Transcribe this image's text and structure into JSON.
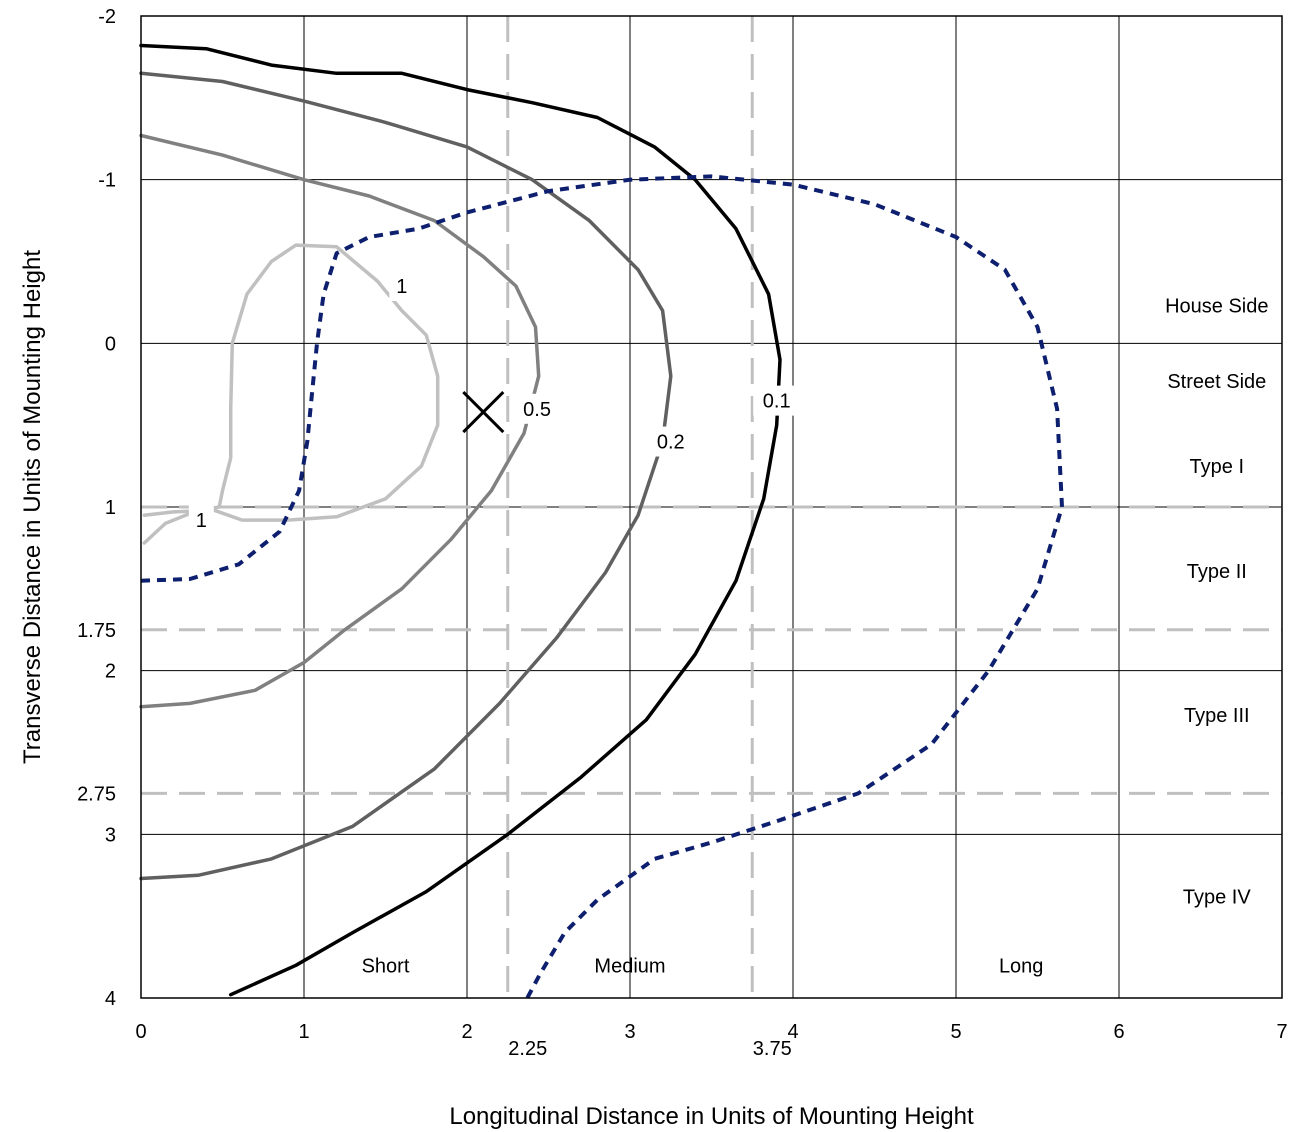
{
  "chart_data": {
    "type": "line",
    "xlabel": "Longitudinal Distance in Units of Mounting Height",
    "ylabel": "Transverse Distance in Units of Mounting Height",
    "xlim": [
      0,
      7
    ],
    "ylim": [
      -2,
      4
    ],
    "y_inverted": true,
    "grid": true,
    "x_ticks": [
      0,
      1,
      2,
      3,
      4,
      5,
      6,
      7
    ],
    "y_ticks": [
      -2,
      -1,
      0,
      1,
      2,
      3,
      4
    ],
    "extra_x_ticks": [
      2.25,
      3.75
    ],
    "extra_y_ticks": [
      1.75,
      2.75
    ],
    "reference_lines": {
      "vertical": [
        2.25,
        3.75
      ],
      "horizontal": [
        1,
        1.75,
        2.75
      ]
    },
    "region_labels": [
      {
        "text": "House Side",
        "x": 6.6,
        "y": -0.23
      },
      {
        "text": "Street Side",
        "x": 6.6,
        "y": 0.23
      },
      {
        "text": "Type I",
        "x": 6.6,
        "y": 0.75
      },
      {
        "text": "Type II",
        "x": 6.6,
        "y": 1.39
      },
      {
        "text": "Type III",
        "x": 6.6,
        "y": 2.27
      },
      {
        "text": "Type IV",
        "x": 6.6,
        "y": 3.38
      },
      {
        "text": "Short",
        "x": 1.5,
        "y": 3.8
      },
      {
        "text": "Medium",
        "x": 3.0,
        "y": 3.8
      },
      {
        "text": "Long",
        "x": 5.4,
        "y": 3.8
      }
    ],
    "marker": {
      "x": 2.1,
      "y": 0.42
    },
    "series": [
      {
        "label": "1",
        "color": "#c0c0c0",
        "points": [
          [
            0.02,
            1.05
          ],
          [
            0.2,
            1.03
          ],
          [
            0.45,
            1.02
          ],
          [
            0.62,
            1.08
          ],
          [
            0.9,
            1.08
          ],
          [
            1.2,
            1.06
          ],
          [
            1.5,
            0.95
          ],
          [
            1.72,
            0.75
          ],
          [
            1.82,
            0.5
          ],
          [
            1.82,
            0.2
          ],
          [
            1.75,
            -0.05
          ],
          [
            1.6,
            -0.2
          ],
          [
            1.45,
            -0.38
          ],
          [
            1.2,
            -0.59
          ],
          [
            0.95,
            -0.6
          ],
          [
            0.8,
            -0.5
          ],
          [
            0.65,
            -0.3
          ],
          [
            0.56,
            0
          ],
          [
            0.55,
            0.4
          ],
          [
            0.55,
            0.7
          ],
          [
            0.5,
            0.9
          ],
          [
            0.48,
            1.0
          ],
          [
            0.35,
            1.02
          ],
          [
            0.15,
            1.1
          ],
          [
            0.02,
            1.22
          ]
        ],
        "label_pos": [
          [
            1.6,
            -0.35
          ],
          [
            0.37,
            1.08
          ]
        ]
      },
      {
        "label": "0.5",
        "color": "#808080",
        "points": [
          [
            0,
            -1.27
          ],
          [
            0.5,
            -1.15
          ],
          [
            1,
            -1.0
          ],
          [
            1.4,
            -0.9
          ],
          [
            1.8,
            -0.75
          ],
          [
            2.1,
            -0.53
          ],
          [
            2.3,
            -0.35
          ],
          [
            2.42,
            -0.1
          ],
          [
            2.44,
            0.2
          ],
          [
            2.35,
            0.55
          ],
          [
            2.15,
            0.9
          ],
          [
            1.9,
            1.2
          ],
          [
            1.6,
            1.5
          ],
          [
            1.25,
            1.75
          ],
          [
            1,
            1.95
          ],
          [
            0.7,
            2.12
          ],
          [
            0.3,
            2.2
          ],
          [
            0,
            2.22
          ]
        ],
        "label_pos": [
          [
            2.43,
            0.4
          ]
        ]
      },
      {
        "label": "0.2",
        "color": "#606060",
        "points": [
          [
            0,
            -1.65
          ],
          [
            0.5,
            -1.6
          ],
          [
            1,
            -1.48
          ],
          [
            1.5,
            -1.35
          ],
          [
            2,
            -1.2
          ],
          [
            2.4,
            -1.0
          ],
          [
            2.75,
            -0.75
          ],
          [
            3.05,
            -0.45
          ],
          [
            3.2,
            -0.2
          ],
          [
            3.25,
            0.2
          ],
          [
            3.2,
            0.6
          ],
          [
            3.05,
            1.05
          ],
          [
            2.85,
            1.4
          ],
          [
            2.55,
            1.8
          ],
          [
            2.2,
            2.2
          ],
          [
            1.8,
            2.6
          ],
          [
            1.3,
            2.95
          ],
          [
            0.8,
            3.15
          ],
          [
            0.35,
            3.25
          ],
          [
            0,
            3.27
          ]
        ],
        "label_pos": [
          [
            3.25,
            0.6
          ]
        ]
      },
      {
        "label": "0.1",
        "color": "#000000",
        "points": [
          [
            0,
            -1.82
          ],
          [
            0.4,
            -1.8
          ],
          [
            0.8,
            -1.7
          ],
          [
            1.2,
            -1.65
          ],
          [
            1.6,
            -1.65
          ],
          [
            2,
            -1.55
          ],
          [
            2.4,
            -1.47
          ],
          [
            2.8,
            -1.38
          ],
          [
            3.15,
            -1.2
          ],
          [
            3.4,
            -1.0
          ],
          [
            3.65,
            -0.7
          ],
          [
            3.85,
            -0.3
          ],
          [
            3.92,
            0.1
          ],
          [
            3.9,
            0.5
          ],
          [
            3.82,
            0.95
          ],
          [
            3.65,
            1.45
          ],
          [
            3.4,
            1.9
          ],
          [
            3.1,
            2.3
          ],
          [
            2.7,
            2.65
          ],
          [
            2.25,
            3.0
          ],
          [
            1.75,
            3.35
          ],
          [
            1.3,
            3.6
          ],
          [
            0.95,
            3.8
          ],
          [
            0.55,
            3.98
          ]
        ],
        "label_pos": [
          [
            3.9,
            0.35
          ]
        ]
      },
      {
        "label": "",
        "color": "#0d1f6e",
        "dashed": true,
        "points": [
          [
            0,
            1.45
          ],
          [
            0.3,
            1.44
          ],
          [
            0.6,
            1.35
          ],
          [
            0.85,
            1.15
          ],
          [
            0.97,
            0.9
          ],
          [
            1.02,
            0.6
          ],
          [
            1.05,
            0.3
          ],
          [
            1.08,
            0
          ],
          [
            1.12,
            -0.3
          ],
          [
            1.2,
            -0.55
          ],
          [
            1.4,
            -0.65
          ],
          [
            1.7,
            -0.7
          ],
          [
            2,
            -0.8
          ],
          [
            2.5,
            -0.93
          ],
          [
            3,
            -1.0
          ],
          [
            3.5,
            -1.02
          ],
          [
            4,
            -0.97
          ],
          [
            4.5,
            -0.85
          ],
          [
            5,
            -0.65
          ],
          [
            5.3,
            -0.45
          ],
          [
            5.5,
            -0.1
          ],
          [
            5.62,
            0.4
          ],
          [
            5.65,
            1.0
          ],
          [
            5.5,
            1.5
          ],
          [
            5.2,
            2.0
          ],
          [
            4.85,
            2.45
          ],
          [
            4.4,
            2.75
          ],
          [
            3.9,
            2.92
          ],
          [
            3.5,
            3.05
          ],
          [
            3.15,
            3.15
          ],
          [
            2.8,
            3.4
          ],
          [
            2.6,
            3.6
          ],
          [
            2.45,
            3.85
          ],
          [
            2.37,
            4.0
          ]
        ]
      }
    ]
  }
}
